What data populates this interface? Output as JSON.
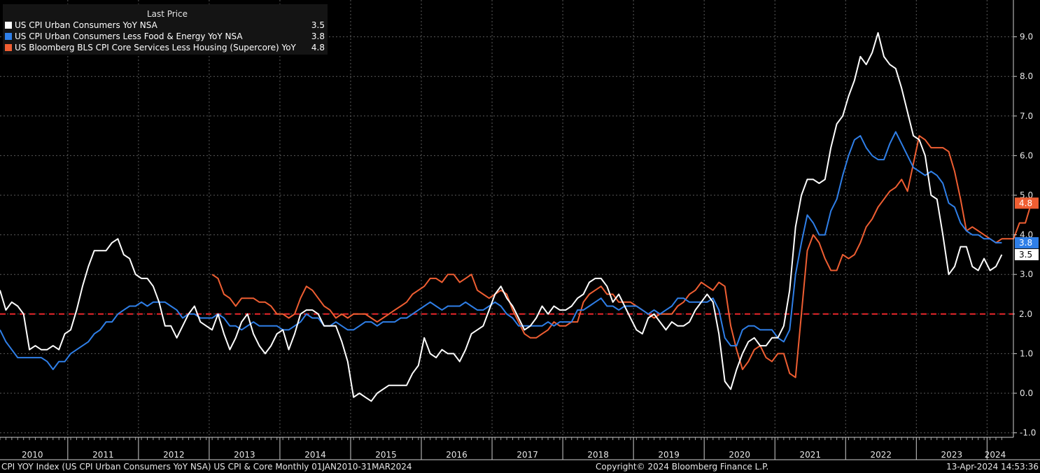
{
  "legend": {
    "header": "Last Price",
    "rows": [
      {
        "name": "US CPI Urban Consumers YoY NSA",
        "value": "3.5",
        "color": "#ffffff"
      },
      {
        "name": "US CPI Urban Consumers Less Food & Energy YoY NSA",
        "value": "3.8",
        "color": "#2f7fe8"
      },
      {
        "name": "US Bloomberg BLS CPI Core Services Less Housing (Supercore) YoY",
        "value": "4.8",
        "color": "#ef5e32"
      }
    ]
  },
  "footer": {
    "left": "CPI YOY Index (US CPI Urban Consumers YoY NSA) US CPI & Core  Monthly 01JAN2010-31MAR2024",
    "center": "Copyright© 2024 Bloomberg Finance L.P.",
    "right": "13-Apr-2024 14:53:36"
  },
  "chart_data": {
    "type": "line",
    "x_start": "2010-01",
    "x_end": "2024-03",
    "frequency": "monthly",
    "x_tick_labels": [
      "2010",
      "2011",
      "2012",
      "2013",
      "2014",
      "2015",
      "2016",
      "2017",
      "2018",
      "2019",
      "2020",
      "2021",
      "2022",
      "2023",
      "2024"
    ],
    "ylim": [
      -1.0,
      9.0
    ],
    "y_tick_labels": [
      "9.0",
      "8.0",
      "7.0",
      "6.0",
      "5.0",
      "4.0",
      "3.0",
      "2.0",
      "1.0",
      "0.0",
      "-1.0"
    ],
    "grid": true,
    "legend_position": "top-left",
    "reference_line": {
      "value": 2.0,
      "label": "2.0",
      "color": "#e8262a"
    },
    "colors": {
      "background": "#000000",
      "grid": "#5a5a5a",
      "reference": "#e8262a"
    },
    "series": [
      {
        "name": "US CPI Urban Consumers YoY NSA",
        "color": "#ffffff",
        "last": "3.5",
        "values": [
          2.6,
          2.1,
          2.3,
          2.2,
          2.0,
          1.1,
          1.2,
          1.1,
          1.1,
          1.2,
          1.1,
          1.5,
          1.6,
          2.1,
          2.7,
          3.2,
          3.6,
          3.6,
          3.6,
          3.8,
          3.9,
          3.5,
          3.4,
          3.0,
          2.9,
          2.9,
          2.7,
          2.3,
          1.7,
          1.7,
          1.4,
          1.7,
          2.0,
          2.2,
          1.8,
          1.7,
          1.6,
          2.0,
          1.5,
          1.1,
          1.4,
          1.8,
          2.0,
          1.5,
          1.2,
          1.0,
          1.2,
          1.5,
          1.6,
          1.1,
          1.5,
          2.0,
          2.1,
          2.1,
          2.0,
          1.7,
          1.7,
          1.7,
          1.3,
          0.8,
          -0.1,
          0.0,
          -0.1,
          -0.2,
          0.0,
          0.1,
          0.2,
          0.2,
          0.2,
          0.2,
          0.5,
          0.7,
          1.4,
          1.0,
          0.9,
          1.1,
          1.0,
          1.0,
          0.8,
          1.1,
          1.5,
          1.6,
          1.7,
          2.1,
          2.5,
          2.7,
          2.4,
          2.2,
          1.9,
          1.6,
          1.7,
          1.9,
          2.2,
          2.0,
          2.2,
          2.1,
          2.1,
          2.2,
          2.4,
          2.5,
          2.8,
          2.9,
          2.9,
          2.7,
          2.3,
          2.5,
          2.2,
          1.9,
          1.6,
          1.5,
          1.9,
          2.0,
          1.8,
          1.6,
          1.8,
          1.7,
          1.7,
          1.8,
          2.1,
          2.3,
          2.5,
          2.3,
          1.5,
          0.3,
          0.1,
          0.6,
          1.0,
          1.3,
          1.4,
          1.2,
          1.2,
          1.4,
          1.4,
          1.7,
          2.6,
          4.2,
          5.0,
          5.4,
          5.4,
          5.3,
          5.4,
          6.2,
          6.8,
          7.0,
          7.5,
          7.9,
          8.5,
          8.3,
          8.6,
          9.1,
          8.5,
          8.3,
          8.2,
          7.7,
          7.1,
          6.5,
          6.4,
          6.0,
          5.0,
          4.9,
          4.0,
          3.0,
          3.2,
          3.7,
          3.7,
          3.2,
          3.1,
          3.4,
          3.1,
          3.2,
          3.5
        ]
      },
      {
        "name": "US CPI Urban Consumers Less Food & Energy YoY NSA",
        "color": "#2f7fe8",
        "last": "3.8",
        "values": [
          1.6,
          1.3,
          1.1,
          0.9,
          0.9,
          0.9,
          0.9,
          0.9,
          0.8,
          0.6,
          0.8,
          0.8,
          1.0,
          1.1,
          1.2,
          1.3,
          1.5,
          1.6,
          1.8,
          1.8,
          2.0,
          2.1,
          2.2,
          2.2,
          2.3,
          2.2,
          2.3,
          2.3,
          2.3,
          2.2,
          2.1,
          1.9,
          2.0,
          2.0,
          1.9,
          1.9,
          1.9,
          2.0,
          1.9,
          1.7,
          1.7,
          1.6,
          1.7,
          1.8,
          1.7,
          1.7,
          1.7,
          1.7,
          1.6,
          1.6,
          1.7,
          1.8,
          2.0,
          1.9,
          1.9,
          1.7,
          1.7,
          1.8,
          1.7,
          1.6,
          1.6,
          1.7,
          1.8,
          1.8,
          1.7,
          1.8,
          1.8,
          1.8,
          1.9,
          1.9,
          2.0,
          2.1,
          2.2,
          2.3,
          2.2,
          2.1,
          2.2,
          2.2,
          2.2,
          2.3,
          2.2,
          2.1,
          2.1,
          2.2,
          2.3,
          2.2,
          2.0,
          1.9,
          1.7,
          1.7,
          1.7,
          1.7,
          1.7,
          1.8,
          1.7,
          1.8,
          1.8,
          1.8,
          2.1,
          2.1,
          2.2,
          2.3,
          2.4,
          2.2,
          2.2,
          2.1,
          2.2,
          2.2,
          2.2,
          2.1,
          2.0,
          2.1,
          2.0,
          2.1,
          2.2,
          2.4,
          2.4,
          2.3,
          2.3,
          2.3,
          2.3,
          2.4,
          2.1,
          1.4,
          1.2,
          1.2,
          1.6,
          1.7,
          1.7,
          1.6,
          1.6,
          1.6,
          1.4,
          1.3,
          1.6,
          3.0,
          3.8,
          4.5,
          4.3,
          4.0,
          4.0,
          4.6,
          4.9,
          5.5,
          6.0,
          6.4,
          6.5,
          6.2,
          6.0,
          5.9,
          5.9,
          6.3,
          6.6,
          6.3,
          6.0,
          5.7,
          5.6,
          5.5,
          5.6,
          5.5,
          5.3,
          4.8,
          4.7,
          4.3,
          4.1,
          4.0,
          4.0,
          3.9,
          3.9,
          3.8,
          3.8
        ]
      },
      {
        "name": "US Bloomberg BLS CPI Core Services Less Housing (Supercore) YoY",
        "color": "#ef5e32",
        "last": "4.8",
        "start_index": 36,
        "values": [
          3.0,
          2.9,
          2.5,
          2.4,
          2.2,
          2.4,
          2.4,
          2.4,
          2.3,
          2.3,
          2.2,
          2.0,
          2.0,
          1.9,
          2.0,
          2.4,
          2.7,
          2.6,
          2.4,
          2.2,
          2.1,
          1.9,
          2.0,
          1.9,
          2.0,
          2.0,
          2.0,
          1.9,
          1.8,
          1.9,
          2.0,
          2.1,
          2.2,
          2.3,
          2.5,
          2.6,
          2.7,
          2.9,
          2.9,
          2.8,
          3.0,
          3.0,
          2.8,
          2.9,
          3.0,
          2.6,
          2.5,
          2.4,
          2.5,
          2.6,
          2.5,
          2.1,
          1.8,
          1.5,
          1.4,
          1.4,
          1.5,
          1.6,
          1.8,
          1.7,
          1.7,
          1.8,
          1.8,
          2.3,
          2.5,
          2.6,
          2.7,
          2.5,
          2.5,
          2.3,
          2.3,
          2.3,
          2.2,
          2.1,
          2.0,
          1.9,
          2.0,
          2.0,
          2.0,
          2.2,
          2.3,
          2.5,
          2.6,
          2.8,
          2.7,
          2.6,
          2.8,
          2.7,
          1.7,
          1.1,
          0.6,
          0.8,
          1.1,
          1.2,
          0.9,
          0.8,
          1.0,
          1.0,
          0.5,
          0.4,
          2.0,
          3.6,
          4.0,
          3.8,
          3.4,
          3.1,
          3.1,
          3.5,
          3.4,
          3.5,
          3.8,
          4.2,
          4.4,
          4.7,
          4.9,
          5.1,
          5.2,
          5.4,
          5.1,
          5.8,
          6.5,
          6.4,
          6.2,
          6.2,
          6.2,
          6.1,
          5.6,
          4.9,
          4.1,
          4.2,
          4.1,
          4.0,
          3.9,
          3.8,
          3.9,
          3.9,
          3.9,
          4.3,
          4.3,
          4.8
        ]
      }
    ]
  }
}
